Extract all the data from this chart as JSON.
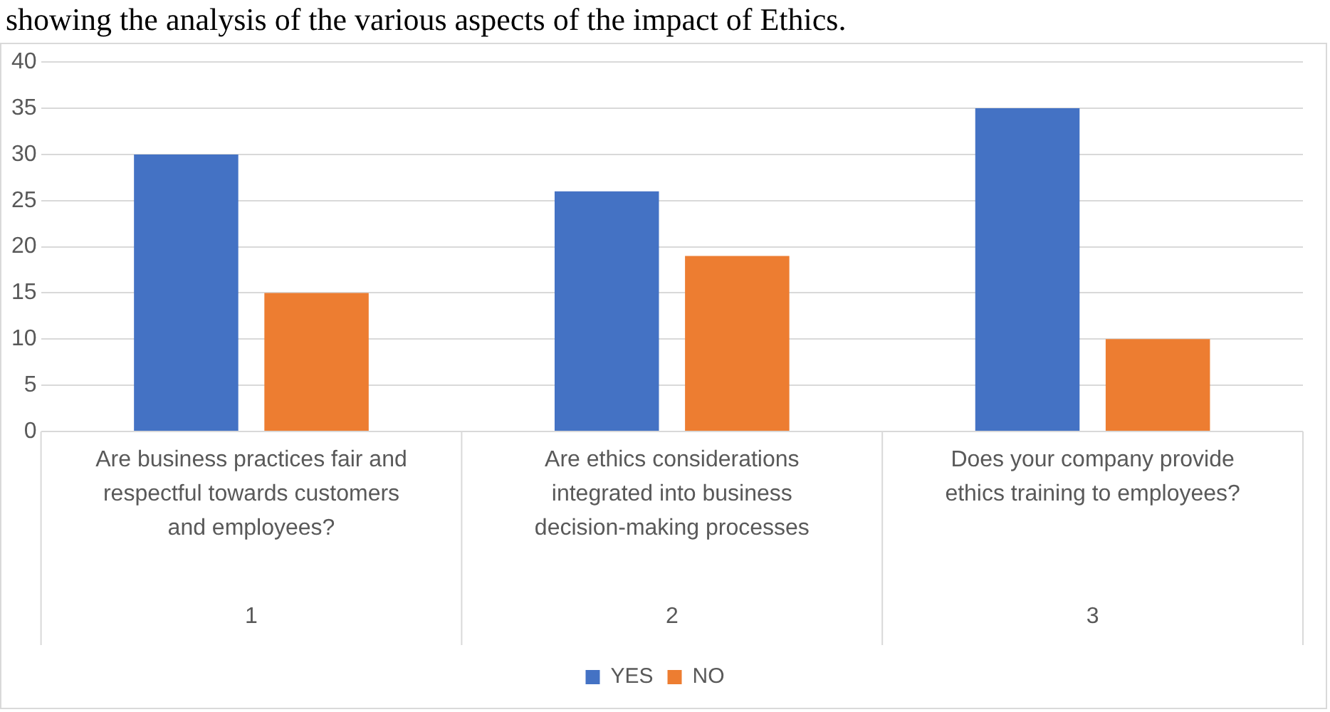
{
  "chart_data": {
    "type": "bar",
    "title": "showing the analysis of the various aspects of the impact of Ethics.",
    "categories": [
      "Are business practices fair and respectful towards customers and employees?",
      "Are ethics considerations integrated into business decision-making processes",
      "Does your company provide ethics training to employees?"
    ],
    "series": [
      {
        "name": "YES",
        "color": "#4472c4",
        "values": [
          30,
          26,
          35
        ]
      },
      {
        "name": "NO",
        "color": "#ed7d31",
        "values": [
          15,
          19,
          10
        ]
      }
    ],
    "annotations": [
      "1",
      "2",
      "3"
    ],
    "ylim": [
      0,
      40
    ],
    "yticks": [
      0,
      5,
      10,
      15,
      20,
      25,
      30,
      35,
      40
    ],
    "grid": "y",
    "legend": "bottom"
  }
}
